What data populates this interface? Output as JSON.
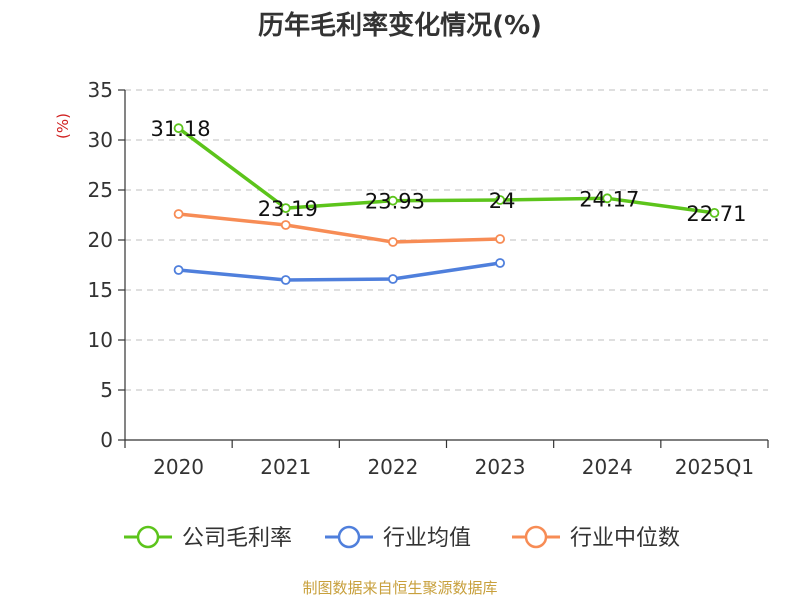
{
  "chart_data": {
    "type": "line",
    "title": "历年毛利率变化情况(%)",
    "ylabel": "(%)",
    "xlabel": "",
    "categories": [
      "2020",
      "2021",
      "2022",
      "2023",
      "2024",
      "2025Q1"
    ],
    "yticks": [
      "0",
      "5",
      "10",
      "15",
      "20",
      "25",
      "30",
      "35"
    ],
    "ylim": [
      0,
      35
    ],
    "grid": "horizontal dashed",
    "legend_position": "bottom",
    "series": [
      {
        "name": "公司毛利率",
        "color": "#5cc41b",
        "values": [
          31.18,
          23.19,
          23.93,
          24,
          24.17,
          22.71
        ],
        "labels": [
          "31.18",
          "23.19",
          "23.93",
          "24",
          "24.17",
          "22.71"
        ]
      },
      {
        "name": "行业均值",
        "color": "#4f7fdc",
        "values": [
          17.0,
          16.0,
          16.1,
          17.7,
          null,
          null
        ]
      },
      {
        "name": "行业中位数",
        "color": "#f78c55",
        "values": [
          22.6,
          21.5,
          19.8,
          20.1,
          null,
          null
        ]
      }
    ]
  },
  "footer": {
    "source": "制图数据来自恒生聚源数据库",
    "source_color": "#c8a03c"
  },
  "colors": {
    "unit_label": "#d02020",
    "axis": "#333333",
    "grid": "#cccccc"
  }
}
